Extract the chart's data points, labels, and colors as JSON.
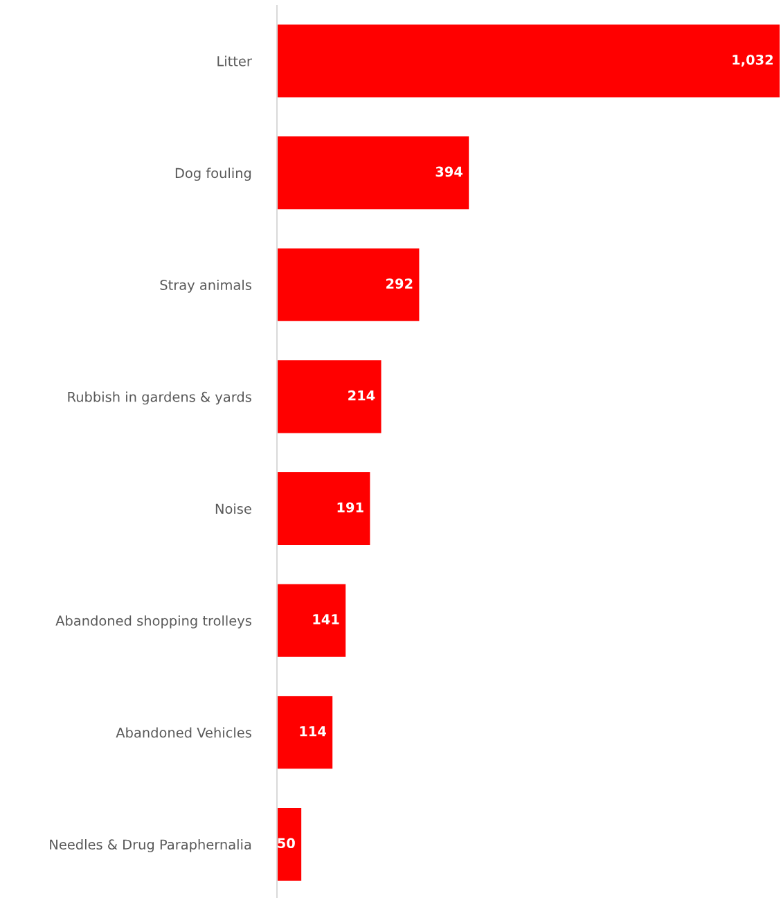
{
  "chart_data": {
    "type": "bar",
    "orientation": "horizontal",
    "categories": [
      "Litter",
      "Dog fouling",
      "Stray animals",
      "Rubbish in gardens & yards",
      "Noise",
      "Abandoned shopping trolleys",
      "Abandoned Vehicles",
      "Needles & Drug Paraphernalia"
    ],
    "values": [
      1032,
      394,
      292,
      214,
      191,
      141,
      114,
      50
    ],
    "color": "#ff0000",
    "value_labels": [
      "1,032",
      "394",
      "292",
      "214",
      "191",
      "141",
      "114",
      "50"
    ],
    "grid": false,
    "legend": false,
    "tick_labels": "y"
  }
}
